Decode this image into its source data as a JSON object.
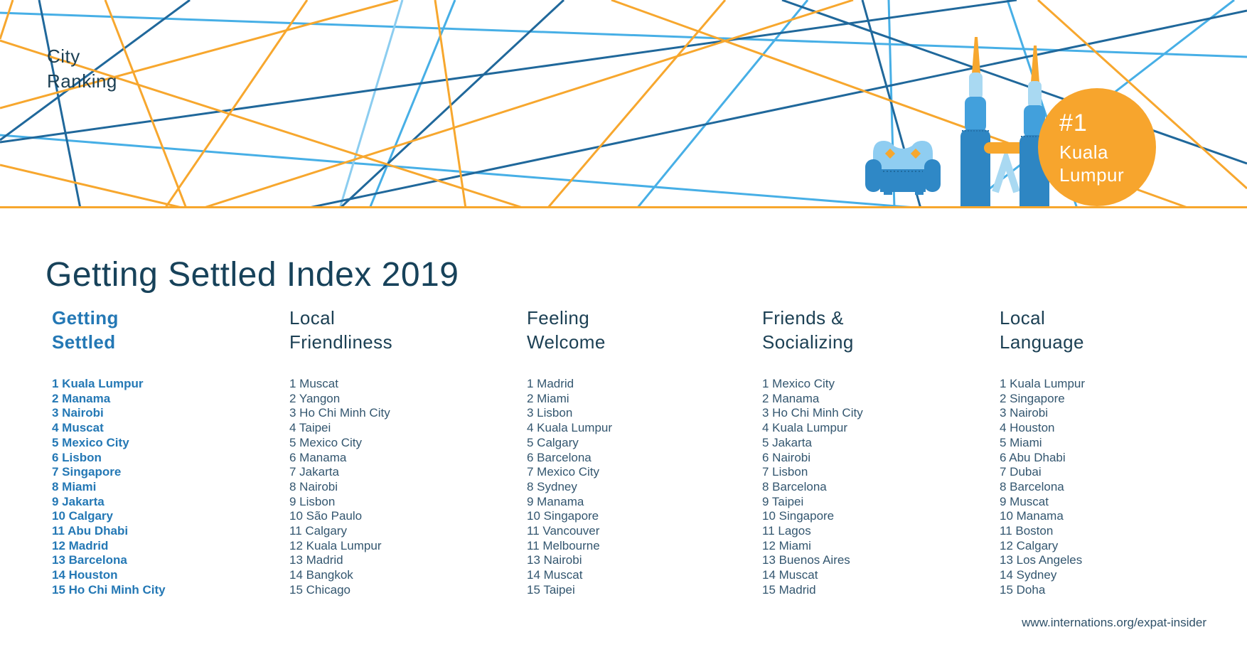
{
  "brand": {
    "line1": "City",
    "line2": "Ranking"
  },
  "badge": {
    "rank": "#1",
    "city_line1": "Kuala",
    "city_line2": "Lumpur"
  },
  "title": "Getting Settled Index 2019",
  "columns": [
    {
      "heading_lines": [
        "Getting",
        "Settled"
      ],
      "highlight": true,
      "items": [
        {
          "rank": "1",
          "city": "Kuala Lumpur"
        },
        {
          "rank": "2",
          "city": "Manama"
        },
        {
          "rank": "3",
          "city": "Nairobi"
        },
        {
          "rank": "4",
          "city": "Muscat"
        },
        {
          "rank": "5",
          "city": "Mexico City"
        },
        {
          "rank": "6",
          "city": "Lisbon"
        },
        {
          "rank": "7",
          "city": "Singapore"
        },
        {
          "rank": "8",
          "city": "Miami"
        },
        {
          "rank": "9",
          "city": "Jakarta"
        },
        {
          "rank": "10",
          "city": "Calgary"
        },
        {
          "rank": "11",
          "city": "Abu Dhabi"
        },
        {
          "rank": "12",
          "city": "Madrid"
        },
        {
          "rank": "13",
          "city": "Barcelona"
        },
        {
          "rank": "14",
          "city": "Houston"
        },
        {
          "rank": "15",
          "city": "Ho Chi Minh City"
        }
      ]
    },
    {
      "heading_lines": [
        "Local",
        "Friendliness"
      ],
      "highlight": false,
      "items": [
        {
          "rank": "1",
          "city": "Muscat"
        },
        {
          "rank": "2",
          "city": "Yangon"
        },
        {
          "rank": "3",
          "city": "Ho Chi Minh City"
        },
        {
          "rank": "4",
          "city": "Taipei"
        },
        {
          "rank": "5",
          "city": "Mexico City"
        },
        {
          "rank": "6",
          "city": "Manama"
        },
        {
          "rank": "7",
          "city": "Jakarta"
        },
        {
          "rank": "8",
          "city": "Nairobi"
        },
        {
          "rank": "9",
          "city": "Lisbon"
        },
        {
          "rank": "10",
          "city": "São Paulo"
        },
        {
          "rank": "11",
          "city": "Calgary"
        },
        {
          "rank": "12",
          "city": "Kuala Lumpur"
        },
        {
          "rank": "13",
          "city": "Madrid"
        },
        {
          "rank": "14",
          "city": "Bangkok"
        },
        {
          "rank": "15",
          "city": "Chicago"
        }
      ]
    },
    {
      "heading_lines": [
        "Feeling",
        "Welcome"
      ],
      "highlight": false,
      "items": [
        {
          "rank": "1",
          "city": "Madrid"
        },
        {
          "rank": "2",
          "city": "Miami"
        },
        {
          "rank": "3",
          "city": "Lisbon"
        },
        {
          "rank": "4",
          "city": "Kuala Lumpur"
        },
        {
          "rank": "5",
          "city": "Calgary"
        },
        {
          "rank": "6",
          "city": "Barcelona"
        },
        {
          "rank": "7",
          "city": "Mexico City"
        },
        {
          "rank": "8",
          "city": "Sydney"
        },
        {
          "rank": "9",
          "city": "Manama"
        },
        {
          "rank": "10",
          "city": "Singapore"
        },
        {
          "rank": "11",
          "city": "Vancouver"
        },
        {
          "rank": "11",
          "city": "Melbourne"
        },
        {
          "rank": "13",
          "city": "Nairobi"
        },
        {
          "rank": "14",
          "city": "Muscat"
        },
        {
          "rank": "15",
          "city": "Taipei"
        }
      ]
    },
    {
      "heading_lines": [
        "Friends &",
        "Socializing"
      ],
      "highlight": false,
      "items": [
        {
          "rank": "1",
          "city": "Mexico City"
        },
        {
          "rank": "2",
          "city": "Manama"
        },
        {
          "rank": "3",
          "city": "Ho Chi Minh City"
        },
        {
          "rank": "4",
          "city": "Kuala Lumpur"
        },
        {
          "rank": "5",
          "city": "Jakarta"
        },
        {
          "rank": "6",
          "city": "Nairobi"
        },
        {
          "rank": "7",
          "city": "Lisbon"
        },
        {
          "rank": "8",
          "city": "Barcelona"
        },
        {
          "rank": "9",
          "city": "Taipei"
        },
        {
          "rank": "10",
          "city": "Singapore"
        },
        {
          "rank": "11",
          "city": "Lagos"
        },
        {
          "rank": "12",
          "city": "Miami"
        },
        {
          "rank": "13",
          "city": "Buenos Aires"
        },
        {
          "rank": "14",
          "city": "Muscat"
        },
        {
          "rank": "15",
          "city": "Madrid"
        }
      ]
    },
    {
      "heading_lines": [
        "Local",
        "Language"
      ],
      "highlight": false,
      "items": [
        {
          "rank": "1",
          "city": "Kuala Lumpur"
        },
        {
          "rank": "2",
          "city": "Singapore"
        },
        {
          "rank": "3",
          "city": "Nairobi"
        },
        {
          "rank": "4",
          "city": "Houston"
        },
        {
          "rank": "5",
          "city": "Miami"
        },
        {
          "rank": "6",
          "city": "Abu Dhabi"
        },
        {
          "rank": "7",
          "city": "Dubai"
        },
        {
          "rank": "8",
          "city": "Barcelona"
        },
        {
          "rank": "9",
          "city": "Muscat"
        },
        {
          "rank": "10",
          "city": "Manama"
        },
        {
          "rank": "11",
          "city": "Boston"
        },
        {
          "rank": "12",
          "city": "Calgary"
        },
        {
          "rank": "13",
          "city": "Los Angeles"
        },
        {
          "rank": "14",
          "city": "Sydney"
        },
        {
          "rank": "15",
          "city": "Doha"
        }
      ]
    }
  ],
  "footer": {
    "url": "www.internations.org/expat-insider"
  },
  "colors": {
    "orange": "#f7a72e",
    "sky_blue": "#47afe6",
    "steel_blue": "#20689b",
    "pale_blue": "#8ccdf0",
    "navy": "#1c4054",
    "list_text": "#33566f",
    "rank1_blue": "#2478b5",
    "badge_orange": "#f7a52d"
  }
}
